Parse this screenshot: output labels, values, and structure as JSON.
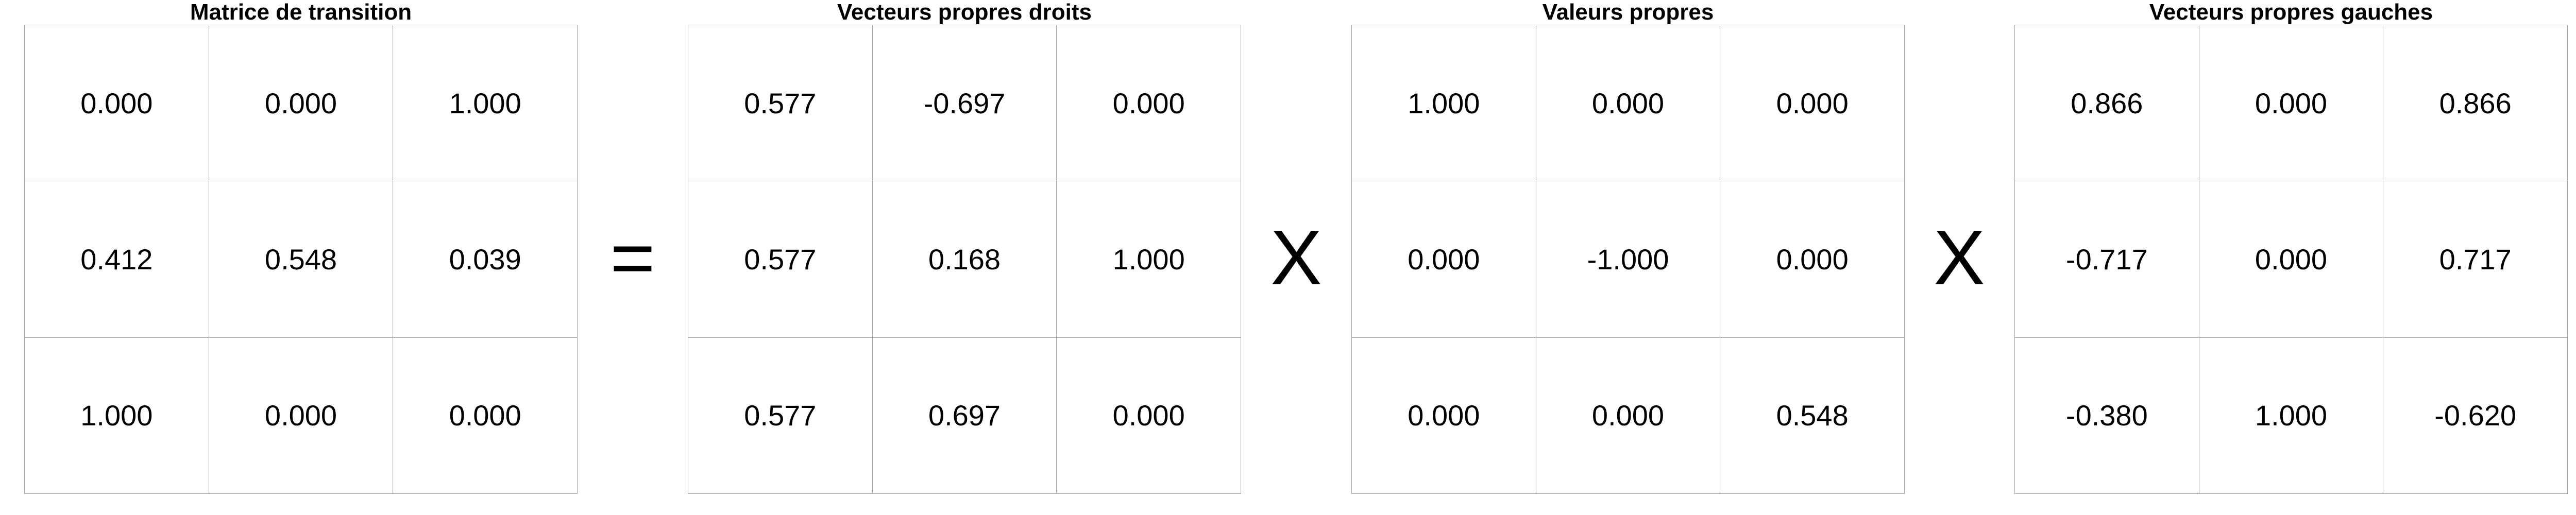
{
  "matrices": [
    {
      "title": "Matrice de transition",
      "rows": [
        [
          "0.000",
          "0.000",
          "1.000"
        ],
        [
          "0.412",
          "0.548",
          "0.039"
        ],
        [
          "1.000",
          "0.000",
          "0.000"
        ]
      ]
    },
    {
      "title": "Vecteurs propres droits",
      "rows": [
        [
          "0.577",
          "-0.697",
          "0.000"
        ],
        [
          "0.577",
          "0.168",
          "1.000"
        ],
        [
          "0.577",
          "0.697",
          "0.000"
        ]
      ]
    },
    {
      "title": "Valeurs propres",
      "rows": [
        [
          "1.000",
          "0.000",
          "0.000"
        ],
        [
          "0.000",
          "-1.000",
          "0.000"
        ],
        [
          "0.000",
          "0.000",
          "0.548"
        ]
      ]
    },
    {
      "title": "Vecteurs propres gauches",
      "rows": [
        [
          "0.866",
          "0.000",
          "0.866"
        ],
        [
          "-0.717",
          "0.000",
          "0.717"
        ],
        [
          "-0.380",
          "1.000",
          "-0.620"
        ]
      ]
    }
  ],
  "operators": [
    "=",
    "X",
    "X"
  ]
}
